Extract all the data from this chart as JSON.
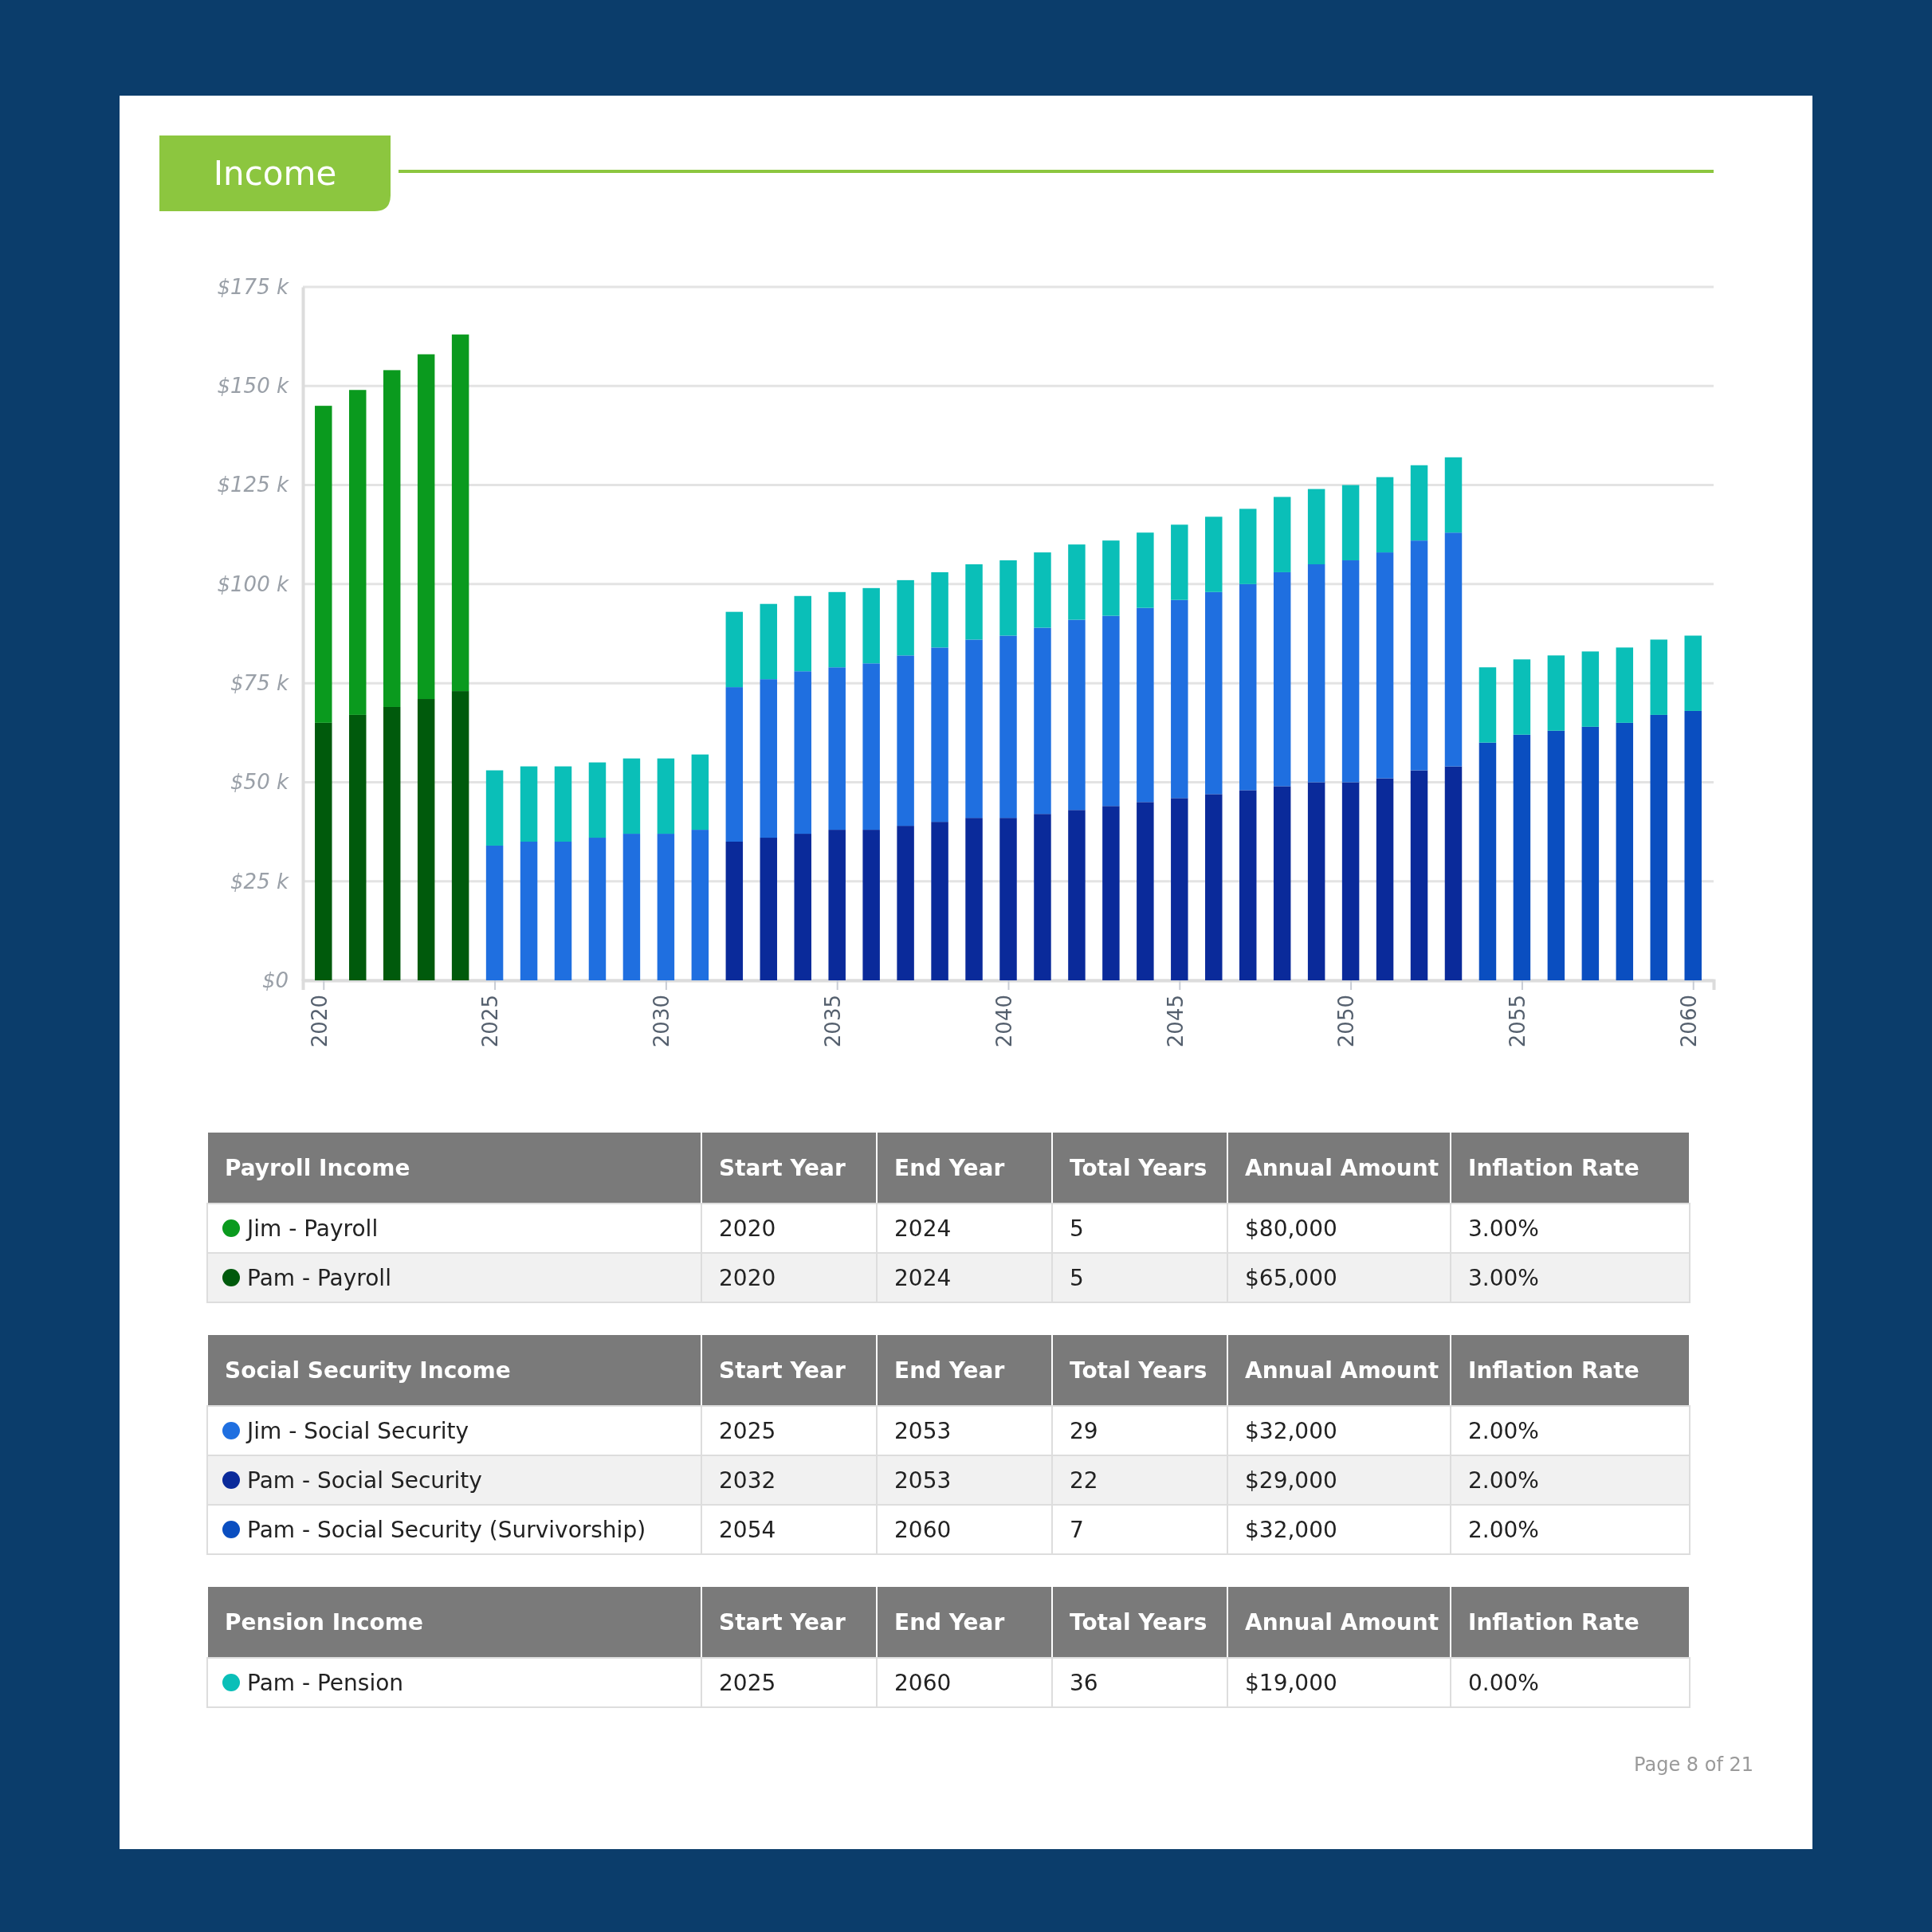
{
  "chart_data": {
    "type": "bar",
    "title": "Income",
    "stacked": true,
    "grid": "y",
    "legend": "bottom",
    "x": [
      2020,
      2021,
      2022,
      2023,
      2024,
      2025,
      2026,
      2027,
      2028,
      2029,
      2030,
      2031,
      2032,
      2033,
      2034,
      2035,
      2036,
      2037,
      2038,
      2039,
      2040,
      2041,
      2042,
      2043,
      2044,
      2045,
      2046,
      2047,
      2048,
      2049,
      2050,
      2051,
      2052,
      2053,
      2054,
      2055,
      2056,
      2057,
      2058,
      2059,
      2060
    ],
    "xlim": [
      2019.4,
      2060.6
    ],
    "xticks": [
      2020,
      2025,
      2030,
      2035,
      2040,
      2045,
      2050,
      2055,
      2060
    ],
    "ylim": [
      0,
      175
    ],
    "yticks": [
      {
        "value": 0,
        "label": "$0"
      },
      {
        "value": 25,
        "label": "$25 k"
      },
      {
        "value": 50,
        "label": "$50 k"
      },
      {
        "value": 75,
        "label": "$75 k"
      },
      {
        "value": 100,
        "label": "$100 k"
      },
      {
        "value": 125,
        "label": "$125 k"
      },
      {
        "value": 150,
        "label": "$150 k"
      },
      {
        "value": 175,
        "label": "$175 k"
      }
    ],
    "series": [
      {
        "name": "Pam - Payroll",
        "color": "#005a0c",
        "values": [
          65,
          67,
          69,
          71,
          73,
          null,
          null,
          null,
          null,
          null,
          null,
          null,
          null,
          null,
          null,
          null,
          null,
          null,
          null,
          null,
          null,
          null,
          null,
          null,
          null,
          null,
          null,
          null,
          null,
          null,
          null,
          null,
          null,
          null,
          null,
          null,
          null,
          null,
          null,
          null,
          null
        ]
      },
      {
        "name": "Jim - Payroll",
        "color": "#0a9a1e",
        "values": [
          80,
          82,
          85,
          87,
          90,
          null,
          null,
          null,
          null,
          null,
          null,
          null,
          null,
          null,
          null,
          null,
          null,
          null,
          null,
          null,
          null,
          null,
          null,
          null,
          null,
          null,
          null,
          null,
          null,
          null,
          null,
          null,
          null,
          null,
          null,
          null,
          null,
          null,
          null,
          null,
          null
        ]
      },
      {
        "name": "Pam - Social Security",
        "color": "#0a2a9a",
        "values": [
          null,
          null,
          null,
          null,
          null,
          null,
          null,
          null,
          null,
          null,
          null,
          null,
          35,
          36,
          37,
          38,
          38,
          39,
          40,
          41,
          41,
          42,
          43,
          44,
          45,
          46,
          47,
          48,
          49,
          50,
          50,
          51,
          53,
          54,
          null,
          null,
          null,
          null,
          null,
          null,
          null
        ]
      },
      {
        "name": "Jim - Social Security",
        "color": "#1f6fe0",
        "values": [
          null,
          null,
          null,
          null,
          null,
          34,
          35,
          35,
          36,
          37,
          37,
          38,
          39,
          40,
          41,
          41,
          42,
          43,
          44,
          45,
          46,
          47,
          48,
          48,
          49,
          50,
          51,
          52,
          54,
          55,
          56,
          57,
          58,
          59,
          null,
          null,
          null,
          null,
          null,
          null,
          null
        ]
      },
      {
        "name": "Pam - Social Security (Survivorship)",
        "color": "#0a4ec0",
        "values": [
          null,
          null,
          null,
          null,
          null,
          null,
          null,
          null,
          null,
          null,
          null,
          null,
          null,
          null,
          null,
          null,
          null,
          null,
          null,
          null,
          null,
          null,
          null,
          null,
          null,
          null,
          null,
          null,
          null,
          null,
          null,
          null,
          null,
          null,
          60,
          62,
          63,
          64,
          65,
          67,
          68
        ]
      },
      {
        "name": "Pam - Pension",
        "color": "#0abfb8",
        "values": [
          null,
          null,
          null,
          null,
          null,
          19,
          19,
          19,
          19,
          19,
          19,
          19,
          19,
          19,
          19,
          19,
          19,
          19,
          19,
          19,
          19,
          19,
          19,
          19,
          19,
          19,
          19,
          19,
          19,
          19,
          19,
          19,
          19,
          19,
          19,
          19,
          19,
          19,
          19,
          19,
          19
        ]
      }
    ],
    "annotations": [
      "Payroll Income",
      "Start Year",
      "End Year",
      "Total Years",
      "Annual Amount",
      "Inflation Rate",
      "2020",
      "2024",
      "5",
      "$80,000",
      "3.00%",
      "2020",
      "2024",
      "5",
      "$65,000",
      "3.00%",
      "Social Security Income",
      "Start Year",
      "End Year",
      "Total Years",
      "Annual Amount",
      "Inflation Rate",
      "2025",
      "2053",
      "29",
      "$32,000",
      "2.00%",
      "2032",
      "2053",
      "22",
      "$29,000",
      "2.00%",
      "2054",
      "2060",
      "7",
      "$32,000",
      "2.00%",
      "Pension Income",
      "Start Year",
      "End Year",
      "Total Years",
      "Annual Amount",
      "Inflation Rate",
      "2025",
      "2060",
      "36",
      "$19,000",
      "0.00%",
      "Page 8 of 21"
    ]
  }
}
